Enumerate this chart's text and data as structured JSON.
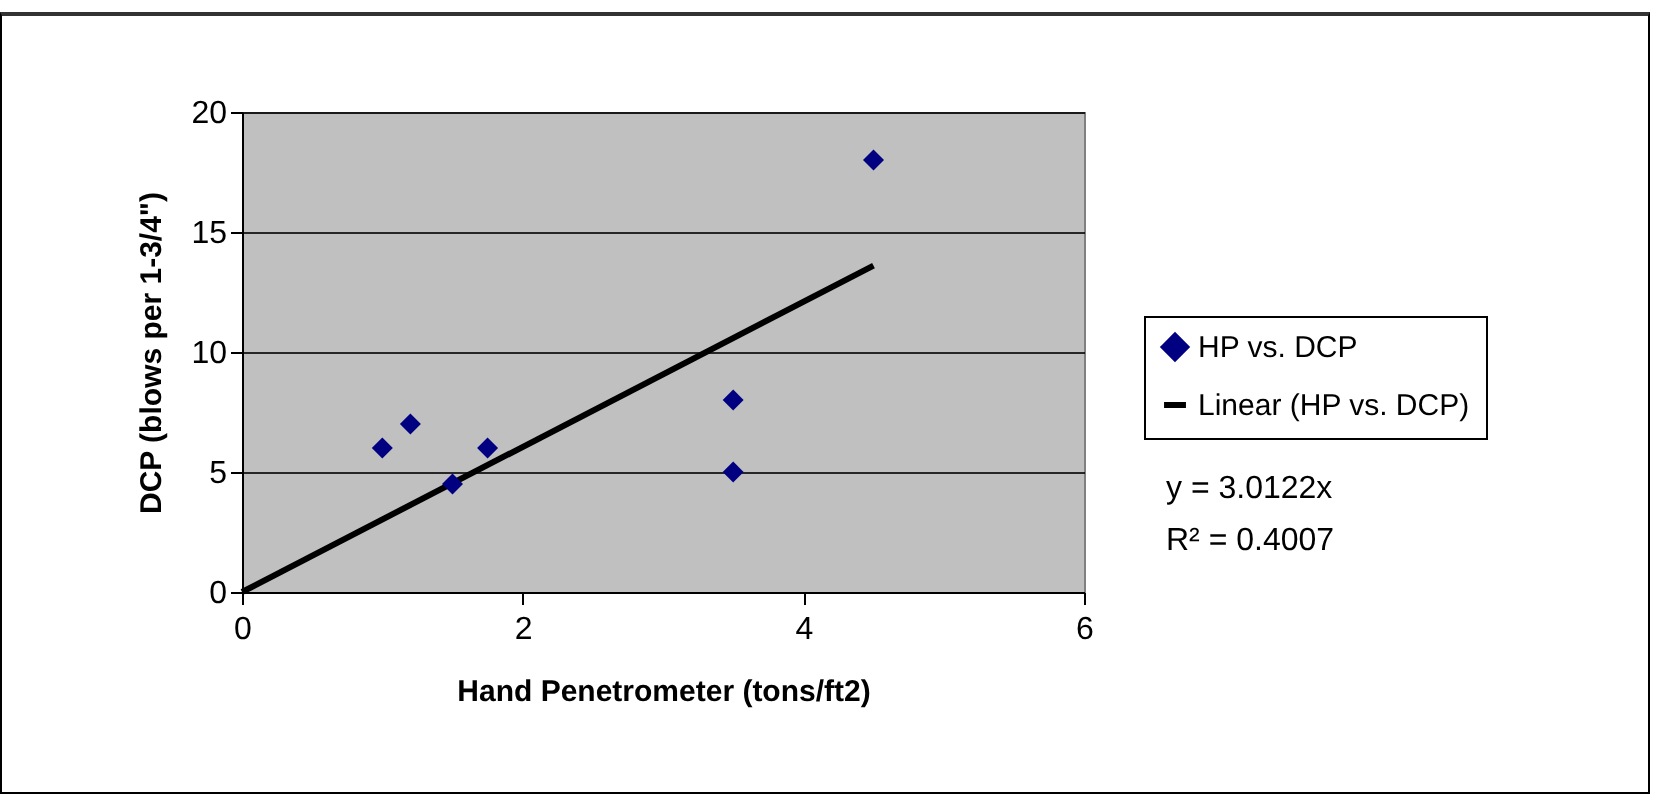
{
  "chart_data": {
    "type": "scatter",
    "xlabel": "Hand Penetrometer (tons/ft2)",
    "ylabel": "DCP (blows per 1-3/4\")",
    "series": [
      {
        "name": "HP vs. DCP",
        "type": "scatter",
        "color": "#000080",
        "marker": "diamond",
        "x": [
          1,
          1.2,
          1.5,
          1.75,
          3.5,
          3.5,
          4.5
        ],
        "values": [
          6,
          7,
          4.5,
          6,
          8,
          5,
          18
        ]
      },
      {
        "name": "Linear (HP vs. DCP)",
        "type": "line",
        "color": "#000000",
        "line_style": "solid",
        "x": [
          0,
          4.5
        ],
        "values": [
          0,
          13.6
        ]
      }
    ],
    "xlim": [
      0,
      6
    ],
    "xticks": [
      0,
      2,
      4,
      6
    ],
    "ylim": [
      0,
      20
    ],
    "yticks": [
      0,
      5,
      10,
      15,
      20
    ],
    "grid": "y",
    "legend": "right",
    "annotations": [
      "y = 3.0122x",
      "R² = 0.4007"
    ]
  }
}
